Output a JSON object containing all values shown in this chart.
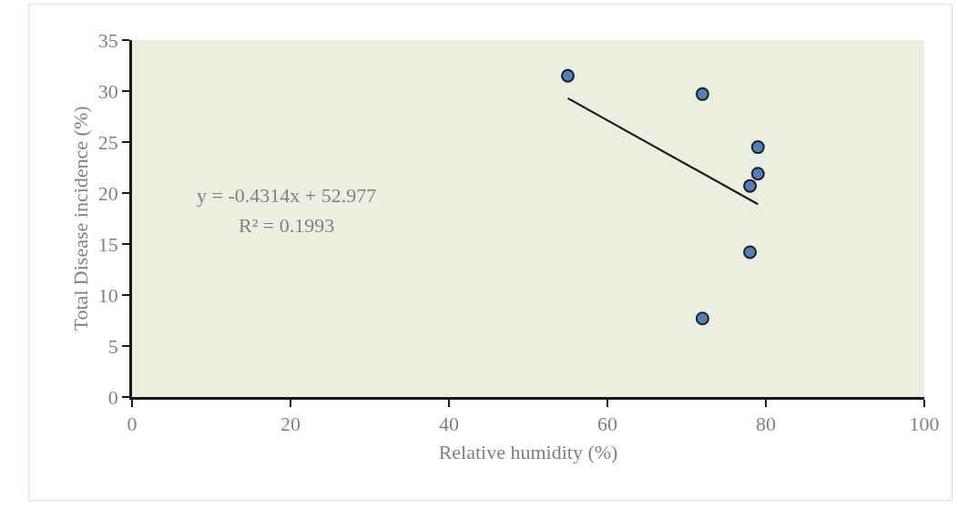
{
  "chart_data": {
    "type": "scatter",
    "xlabel": "Relative humidity (%)",
    "ylabel": "Total Disease incidence (%)",
    "annotations": [
      "y = -0.4314x + 52.977",
      "R² = 0.1993"
    ],
    "series": [
      {
        "color": "#4f81bd",
        "x": [
          55,
          72,
          79,
          79,
          78,
          78,
          72
        ],
        "values": [
          31.5,
          29.7,
          24.5,
          21.9,
          20.7,
          14.2,
          7.7
        ],
        "marker": "circle"
      },
      {
        "type": "line",
        "color": "#1a1a1a",
        "x": [
          55,
          79
        ],
        "values": [
          29.3,
          18.9
        ],
        "marker": "none",
        "line_style": "solid"
      }
    ],
    "xlim": [
      0,
      100
    ],
    "xticks": [
      0,
      20,
      40,
      60,
      80,
      100
    ],
    "ylim": [
      0,
      35
    ],
    "yticks": [
      0,
      5,
      10,
      15,
      20,
      25,
      30,
      35
    ],
    "grid": false
  }
}
